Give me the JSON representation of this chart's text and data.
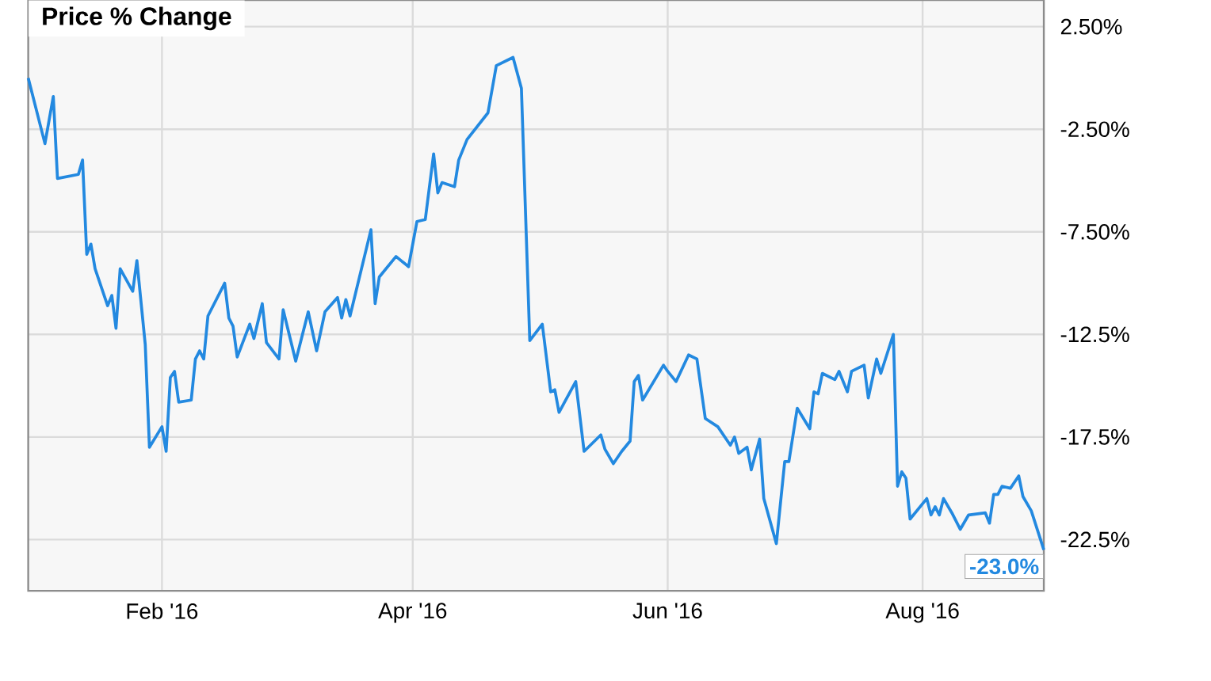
{
  "chart_data": {
    "type": "line",
    "title": "Price % Change",
    "x": [
      "2015-12-31",
      "2016-01-04",
      "2016-01-06",
      "2016-01-07",
      "2016-01-12",
      "2016-01-13",
      "2016-01-14",
      "2016-01-15",
      "2016-01-16",
      "2016-01-19",
      "2016-01-20",
      "2016-01-21",
      "2016-01-22",
      "2016-01-25",
      "2016-01-26",
      "2016-01-28",
      "2016-01-29",
      "2016-02-01",
      "2016-02-02",
      "2016-02-03",
      "2016-02-04",
      "2016-02-05",
      "2016-02-08",
      "2016-02-09",
      "2016-02-10",
      "2016-02-11",
      "2016-02-12",
      "2016-02-16",
      "2016-02-17",
      "2016-02-18",
      "2016-02-19",
      "2016-02-22",
      "2016-02-23",
      "2016-02-25",
      "2016-02-26",
      "2016-02-29",
      "2016-03-01",
      "2016-03-04",
      "2016-03-07",
      "2016-03-09",
      "2016-03-11",
      "2016-03-14",
      "2016-03-15",
      "2016-03-16",
      "2016-03-17",
      "2016-03-22",
      "2016-03-23",
      "2016-03-24",
      "2016-03-28",
      "2016-03-31",
      "2016-04-02",
      "2016-04-04",
      "2016-04-06",
      "2016-04-07",
      "2016-04-08",
      "2016-04-11",
      "2016-04-12",
      "2016-04-14",
      "2016-04-19",
      "2016-04-21",
      "2016-04-25",
      "2016-04-27",
      "2016-04-29",
      "2016-05-02",
      "2016-05-04",
      "2016-05-05",
      "2016-05-06",
      "2016-05-10",
      "2016-05-12",
      "2016-05-16",
      "2016-05-17",
      "2016-05-19",
      "2016-05-21",
      "2016-05-23",
      "2016-05-24",
      "2016-05-25",
      "2016-05-26",
      "2016-05-31",
      "2016-06-01",
      "2016-06-03",
      "2016-06-06",
      "2016-06-08",
      "2016-06-10",
      "2016-06-13",
      "2016-06-16",
      "2016-06-17",
      "2016-06-18",
      "2016-06-20",
      "2016-06-21",
      "2016-06-23",
      "2016-06-24",
      "2016-06-27",
      "2016-06-29",
      "2016-06-30",
      "2016-07-02",
      "2016-07-05",
      "2016-07-06",
      "2016-07-07",
      "2016-07-08",
      "2016-07-11",
      "2016-07-12",
      "2016-07-14",
      "2016-07-15",
      "2016-07-18",
      "2016-07-19",
      "2016-07-21",
      "2016-07-22",
      "2016-07-25",
      "2016-07-26",
      "2016-07-27",
      "2016-07-28",
      "2016-07-29",
      "2016-08-02",
      "2016-08-03",
      "2016-08-04",
      "2016-08-05",
      "2016-08-06",
      "2016-08-08",
      "2016-08-10",
      "2016-08-12",
      "2016-08-16",
      "2016-08-17",
      "2016-08-18",
      "2016-08-19",
      "2016-08-20",
      "2016-08-22",
      "2016-08-24",
      "2016-08-25",
      "2016-08-27",
      "2016-08-30"
    ],
    "series": [
      {
        "color": "#2389e0",
        "values": [
          0,
          -3.2,
          -0.9,
          -4.9,
          -4.7,
          -4.0,
          -8.6,
          -8.1,
          -9.3,
          -11.1,
          -10.6,
          -12.2,
          -9.3,
          -10.4,
          -8.9,
          -13.0,
          -18.0,
          -17.0,
          -18.2,
          -14.6,
          -14.3,
          -15.8,
          -15.7,
          -13.7,
          -13.3,
          -13.7,
          -11.6,
          -10.0,
          -11.7,
          -12.1,
          -13.6,
          -12.0,
          -12.7,
          -11.0,
          -12.9,
          -13.7,
          -11.3,
          -13.8,
          -11.4,
          -13.3,
          -11.4,
          -10.7,
          -11.7,
          -10.8,
          -11.6,
          -7.4,
          -11.0,
          -9.7,
          -8.7,
          -9.2,
          -7.0,
          -6.9,
          -3.7,
          -5.6,
          -5.1,
          -5.3,
          -4.0,
          -3.0,
          -1.7,
          0.6,
          1.0,
          -0.5,
          -12.8,
          -12.0,
          -15.3,
          -15.2,
          -16.3,
          -14.8,
          -18.2,
          -17.4,
          -18.1,
          -18.8,
          -18.2,
          -17.7,
          -14.8,
          -14.5,
          -15.7,
          -14.0,
          -14.3,
          -14.8,
          -13.5,
          -13.7,
          -16.6,
          -17.0,
          -17.9,
          -17.5,
          -18.3,
          -18.0,
          -19.1,
          -17.6,
          -20.5,
          -22.7,
          -18.7,
          -18.7,
          -16.1,
          -17.1,
          -15.3,
          -15.4,
          -14.4,
          -14.7,
          -14.3,
          -15.3,
          -14.3,
          -14.0,
          -15.6,
          -13.7,
          -14.4,
          -12.5,
          -19.9,
          -19.2,
          -19.5,
          -21.5,
          -20.5,
          -21.3,
          -20.9,
          -21.3,
          -20.5,
          -21.2,
          -22.0,
          -21.3,
          -21.2,
          -21.7,
          -20.3,
          -20.3,
          -19.9,
          -20.0,
          -19.4,
          -20.4,
          -21.1,
          -23.0
        ]
      }
    ],
    "xlim": [
      "2015-12-31",
      "2016-08-30"
    ],
    "xticks": [
      {
        "value": "2016-02-01",
        "label": "Feb '16"
      },
      {
        "value": "2016-04-01",
        "label": "Apr '16"
      },
      {
        "value": "2016-06-01",
        "label": "Jun '16"
      },
      {
        "value": "2016-08-01",
        "label": "Aug '16"
      }
    ],
    "ylim": [
      -25,
      3.8
    ],
    "yticks": [
      {
        "value": 2.5,
        "label": "2.50%"
      },
      {
        "value": -2.5,
        "label": "-2.50%"
      },
      {
        "value": -7.5,
        "label": "-7.50%"
      },
      {
        "value": -12.5,
        "label": "-12.5%"
      },
      {
        "value": -17.5,
        "label": "-17.5%"
      },
      {
        "value": -22.5,
        "label": "-22.5%"
      }
    ],
    "grid": true,
    "annotations": [
      {
        "text": "-23.0%",
        "x": "2016-08-30",
        "y": -23.0
      }
    ]
  }
}
